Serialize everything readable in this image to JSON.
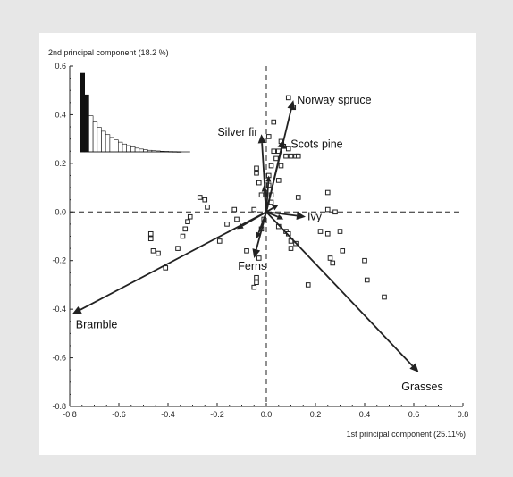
{
  "chart_data": {
    "type": "scatter",
    "title": "",
    "xlabel": "1st principal component (25.11%)",
    "ylabel": "2nd principal component (18.2 %)",
    "xlim": [
      -0.8,
      0.8
    ],
    "ylim": [
      -0.8,
      0.6
    ],
    "x_ticks": [
      -0.8,
      -0.6,
      -0.4,
      -0.2,
      0.0,
      0.2,
      0.4,
      0.6,
      0.8
    ],
    "y_ticks": [
      -0.8,
      -0.6,
      -0.4,
      -0.2,
      0.0,
      0.2,
      0.4,
      0.6
    ],
    "x_tick_labels": [
      "-0.8",
      "-0.6",
      "-0.4",
      "-0.2",
      "0.0",
      "0.2",
      "0.4",
      "0.6",
      "0.8"
    ],
    "y_tick_labels": [
      "-0.8",
      "-0.6",
      "-0.4",
      "-0.2",
      "0.0",
      "0.2",
      "0.4",
      "0.6"
    ],
    "grid": false,
    "reference_lines": {
      "x": 0,
      "y": 0,
      "style": "dashed"
    },
    "loadings": [
      {
        "label": "Norway spruce",
        "x": 0.11,
        "y": 0.46
      },
      {
        "label": "Silver fir",
        "x": -0.02,
        "y": 0.32
      },
      {
        "label": "Scots pine",
        "x": 0.07,
        "y": 0.3
      },
      {
        "label": "Ivy",
        "x": 0.16,
        "y": -0.02
      },
      {
        "label": "Ferns",
        "x": -0.05,
        "y": -0.19
      },
      {
        "label": "Bramble",
        "x": -0.79,
        "y": -0.42
      },
      {
        "label": "Grasses",
        "x": 0.62,
        "y": -0.66
      }
    ],
    "minor_loadings": [
      {
        "x": 0.01,
        "y": 0.15
      },
      {
        "x": -0.01,
        "y": 0.11
      },
      {
        "x": -0.12,
        "y": -0.07
      },
      {
        "x": -0.04,
        "y": -0.11
      },
      {
        "x": 0.07,
        "y": -0.03
      },
      {
        "x": 0.05,
        "y": 0.03
      }
    ],
    "scores": [
      {
        "x": 0.09,
        "y": 0.47
      },
      {
        "x": 0.11,
        "y": 0.43
      },
      {
        "x": 0.03,
        "y": 0.37
      },
      {
        "x": 0.06,
        "y": 0.29
      },
      {
        "x": 0.01,
        "y": 0.31
      },
      {
        "x": 0.07,
        "y": 0.27
      },
      {
        "x": 0.03,
        "y": 0.25
      },
      {
        "x": 0.05,
        "y": 0.25
      },
      {
        "x": 0.09,
        "y": 0.26
      },
      {
        "x": 0.08,
        "y": 0.23
      },
      {
        "x": 0.1,
        "y": 0.23
      },
      {
        "x": 0.12,
        "y": 0.23
      },
      {
        "x": 0.13,
        "y": 0.23
      },
      {
        "x": 0.04,
        "y": 0.22
      },
      {
        "x": 0.06,
        "y": 0.19
      },
      {
        "x": 0.02,
        "y": 0.19
      },
      {
        "x": 0.01,
        "y": 0.15
      },
      {
        "x": -0.04,
        "y": 0.18
      },
      {
        "x": -0.04,
        "y": 0.16
      },
      {
        "x": -0.03,
        "y": 0.12
      },
      {
        "x": 0.01,
        "y": 0.11
      },
      {
        "x": 0.02,
        "y": 0.07
      },
      {
        "x": 0.05,
        "y": 0.13
      },
      {
        "x": 0.25,
        "y": 0.08
      },
      {
        "x": -0.27,
        "y": 0.06
      },
      {
        "x": -0.25,
        "y": 0.05
      },
      {
        "x": -0.24,
        "y": 0.02
      },
      {
        "x": -0.13,
        "y": 0.01
      },
      {
        "x": -0.05,
        "y": 0.01
      },
      {
        "x": 0.02,
        "y": 0.04
      },
      {
        "x": 0.25,
        "y": 0.01
      },
      {
        "x": 0.28,
        "y": 0.0
      },
      {
        "x": -0.31,
        "y": -0.02
      },
      {
        "x": -0.32,
        "y": -0.04
      },
      {
        "x": -0.33,
        "y": -0.07
      },
      {
        "x": -0.12,
        "y": -0.03
      },
      {
        "x": -0.01,
        "y": -0.03
      },
      {
        "x": -0.02,
        "y": -0.07
      },
      {
        "x": -0.47,
        "y": -0.09
      },
      {
        "x": -0.47,
        "y": -0.11
      },
      {
        "x": -0.34,
        "y": -0.1
      },
      {
        "x": -0.16,
        "y": -0.05
      },
      {
        "x": -0.19,
        "y": -0.12
      },
      {
        "x": -0.46,
        "y": -0.16
      },
      {
        "x": -0.44,
        "y": -0.17
      },
      {
        "x": -0.36,
        "y": -0.15
      },
      {
        "x": -0.41,
        "y": -0.23
      },
      {
        "x": 0.05,
        "y": -0.06
      },
      {
        "x": 0.08,
        "y": -0.08
      },
      {
        "x": 0.09,
        "y": -0.09
      },
      {
        "x": 0.1,
        "y": -0.12
      },
      {
        "x": 0.12,
        "y": -0.13
      },
      {
        "x": 0.1,
        "y": -0.15
      },
      {
        "x": 0.22,
        "y": -0.08
      },
      {
        "x": 0.3,
        "y": -0.08
      },
      {
        "x": 0.25,
        "y": -0.09
      },
      {
        "x": 0.31,
        "y": -0.16
      },
      {
        "x": 0.26,
        "y": -0.19
      },
      {
        "x": 0.27,
        "y": -0.21
      },
      {
        "x": 0.4,
        "y": -0.2
      },
      {
        "x": 0.41,
        "y": -0.28
      },
      {
        "x": 0.48,
        "y": -0.35
      },
      {
        "x": 0.17,
        "y": -0.3
      },
      {
        "x": -0.03,
        "y": -0.19
      },
      {
        "x": -0.04,
        "y": -0.27
      },
      {
        "x": -0.04,
        "y": -0.29
      },
      {
        "x": -0.05,
        "y": -0.31
      },
      {
        "x": -0.08,
        "y": -0.16
      },
      {
        "x": 0.13,
        "y": 0.06
      },
      {
        "x": -0.02,
        "y": 0.07
      }
    ],
    "eigenvalue_inset": {
      "type": "bar",
      "values": [
        0.2511,
        0.182,
        0.115,
        0.095,
        0.078,
        0.066,
        0.055,
        0.046,
        0.038,
        0.031,
        0.025,
        0.02,
        0.016,
        0.012,
        0.009,
        0.007,
        0.005,
        0.004,
        0.003,
        0.002,
        0.0015,
        0.001,
        0.0008,
        0.0005
      ],
      "highlighted_count": 2,
      "colors": {
        "highlighted": "#111111",
        "other": "#ffffff",
        "stroke": "#111111"
      }
    },
    "colors": {
      "arrow": "#222222",
      "point_stroke": "#222222",
      "axis": "#222222",
      "background": "#e7e7e7",
      "panel": "#ffffff"
    }
  }
}
